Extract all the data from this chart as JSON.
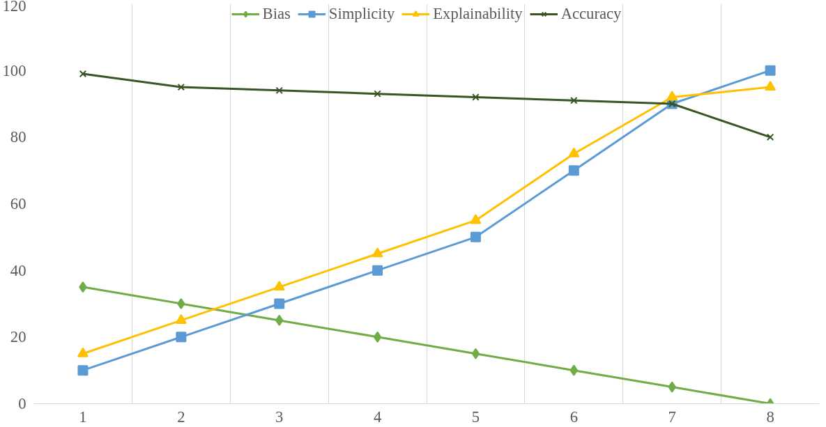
{
  "chart_data": {
    "type": "line",
    "categories": [
      "1",
      "2",
      "3",
      "4",
      "5",
      "6",
      "7",
      "8"
    ],
    "series": [
      {
        "name": "Bias",
        "color": "#70ad47",
        "marker": "diamond",
        "values": [
          35,
          30,
          25,
          20,
          15,
          10,
          5,
          0
        ]
      },
      {
        "name": "Simplicity",
        "color": "#5b9bd5",
        "marker": "square",
        "values": [
          10,
          20,
          30,
          40,
          50,
          70,
          90,
          100
        ]
      },
      {
        "name": "Explainability",
        "color": "#ffc000",
        "marker": "triangle",
        "values": [
          15,
          25,
          35,
          45,
          55,
          75,
          92,
          95
        ]
      },
      {
        "name": "Accuracy",
        "color": "#375623",
        "marker": "cross",
        "values": [
          99,
          95,
          94,
          93,
          92,
          91,
          90,
          80
        ]
      }
    ],
    "ylim": [
      0,
      120
    ],
    "yticks": [
      0,
      20,
      40,
      60,
      80,
      100,
      120
    ],
    "grid": "x",
    "legend": "top",
    "line_style": "solid"
  }
}
